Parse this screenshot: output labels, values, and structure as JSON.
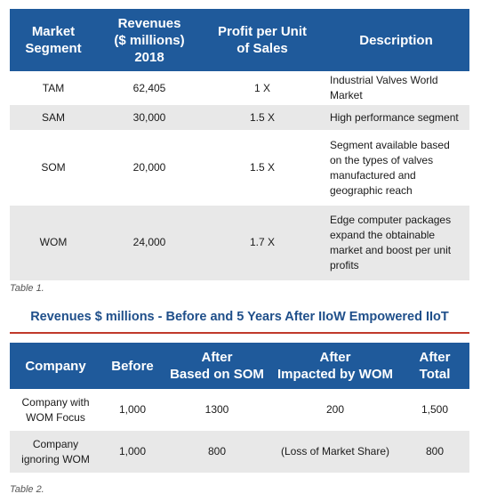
{
  "table1": {
    "headers": [
      "Market\nSegment",
      "Revenues\n($ millions)\n2018",
      "Profit per Unit\nof Sales",
      "Description"
    ],
    "rows": [
      {
        "segment": "TAM",
        "revenue": "62,405",
        "profit": "1 X",
        "description": "Industrial Valves World Market"
      },
      {
        "segment": "SAM",
        "revenue": "30,000",
        "profit": "1.5 X",
        "description": "High performance segment"
      },
      {
        "segment": "SOM",
        "revenue": "20,000",
        "profit": "1.5 X",
        "description": "Segment available based on the types of valves manufactured and geographic reach"
      },
      {
        "segment": "WOM",
        "revenue": "24,000",
        "profit": "1.7 X",
        "description": "Edge computer packages expand the obtainable market and boost per unit profits"
      }
    ],
    "caption": "Table 1."
  },
  "table2": {
    "title": "Revenues $ millions - Before and 5 Years After IIoW Empowered IIoT",
    "headers": [
      "Company",
      "Before",
      "After\nBased on SOM",
      "After\nImpacted by WOM",
      "After\nTotal"
    ],
    "rows": [
      {
        "company": "Company with\nWOM Focus",
        "before": "1,000",
        "after_som": "1300",
        "after_wom": "200",
        "after_total": "1,500"
      },
      {
        "company": "Company\nignoring WOM",
        "before": "1,000",
        "after_som": "800",
        "after_wom": "(Loss of Market Share)",
        "after_total": "800"
      }
    ],
    "caption": "Table 2."
  },
  "colors": {
    "header_bg": "#1f5a9b",
    "title_text": "#1f4f8a",
    "rule": "#c0392b",
    "row_alt": "#e8e8e8"
  }
}
